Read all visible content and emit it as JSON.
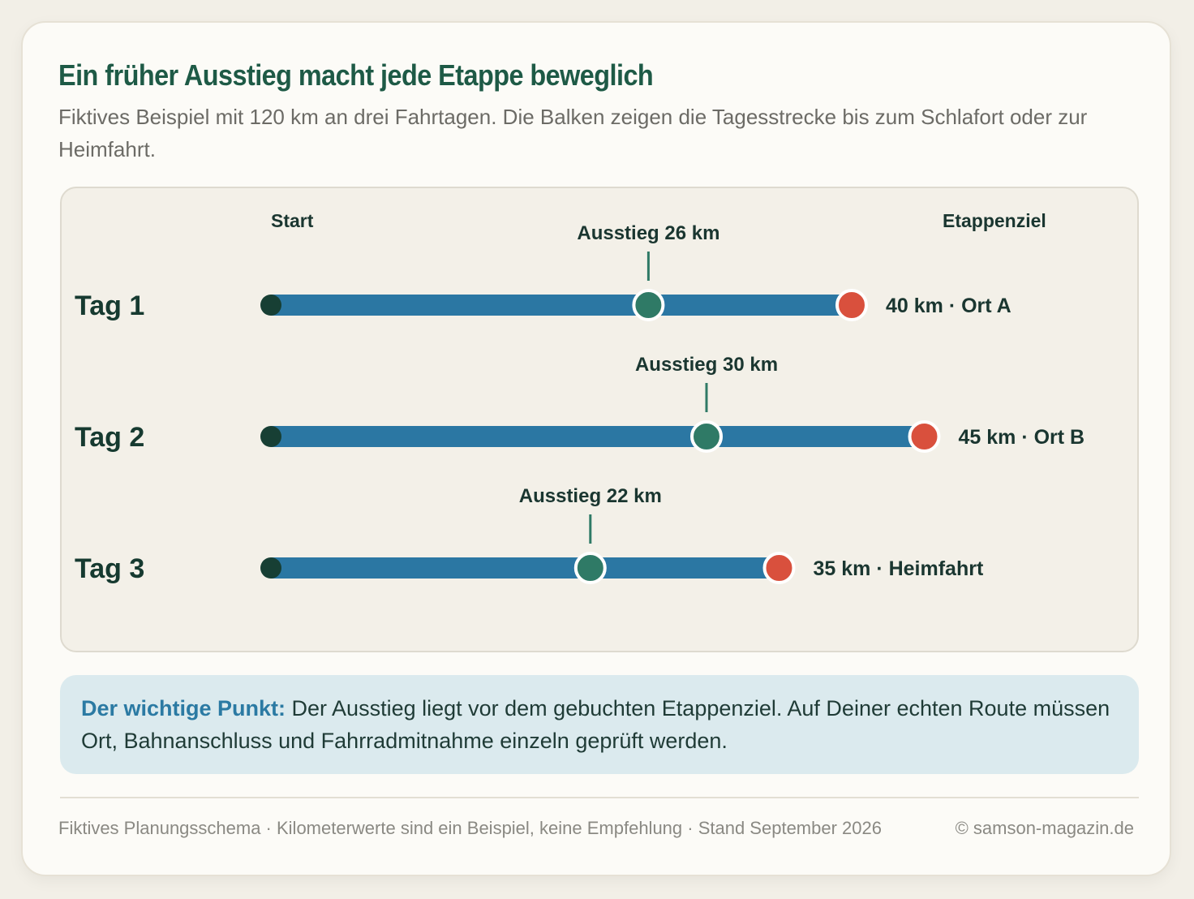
{
  "title": "Ein früher Ausstieg macht jede Etappe beweglich",
  "subtitle": "Fiktives Beispiel mit 120 km an drei Fahrtagen. Die Balken zeigen die Tagesstrecke bis zum Schlafort oder zur Heimfahrt.",
  "chart_data": {
    "type": "bar",
    "orientation": "horizontal",
    "column_labels": {
      "start": "Start",
      "end": "Etappenziel"
    },
    "unit": "km",
    "rows": [
      {
        "day": "Tag 1",
        "distance_km": 40,
        "exit_km": 26,
        "exit_label": "Ausstieg 26 km",
        "end_label": "40 km · Ort A"
      },
      {
        "day": "Tag 2",
        "distance_km": 45,
        "exit_km": 30,
        "exit_label": "Ausstieg 30 km",
        "end_label": "45 km · Ort B"
      },
      {
        "day": "Tag 3",
        "distance_km": 35,
        "exit_km": 22,
        "exit_label": "Ausstieg 22 km",
        "end_label": "35 km · Heimfahrt"
      }
    ],
    "colors": {
      "bar": "#2b77a3",
      "start_dot": "#173f34",
      "exit_dot": "#2f7a66",
      "end_dot": "#d9503d"
    }
  },
  "note": {
    "lead": "Der wichtige Punkt:",
    "text": " Der Ausstieg liegt vor dem gebuchten Etappenziel. Auf Deiner echten Route müssen Ort, Bahnanschluss und Fahrradmitnahme einzeln geprüft werden."
  },
  "footer": {
    "left": "Fiktives Planungsschema · Kilometerwerte sind ein Beispiel, keine Empfehlung · Stand September 2026",
    "right": "© samson-magazin.de"
  }
}
